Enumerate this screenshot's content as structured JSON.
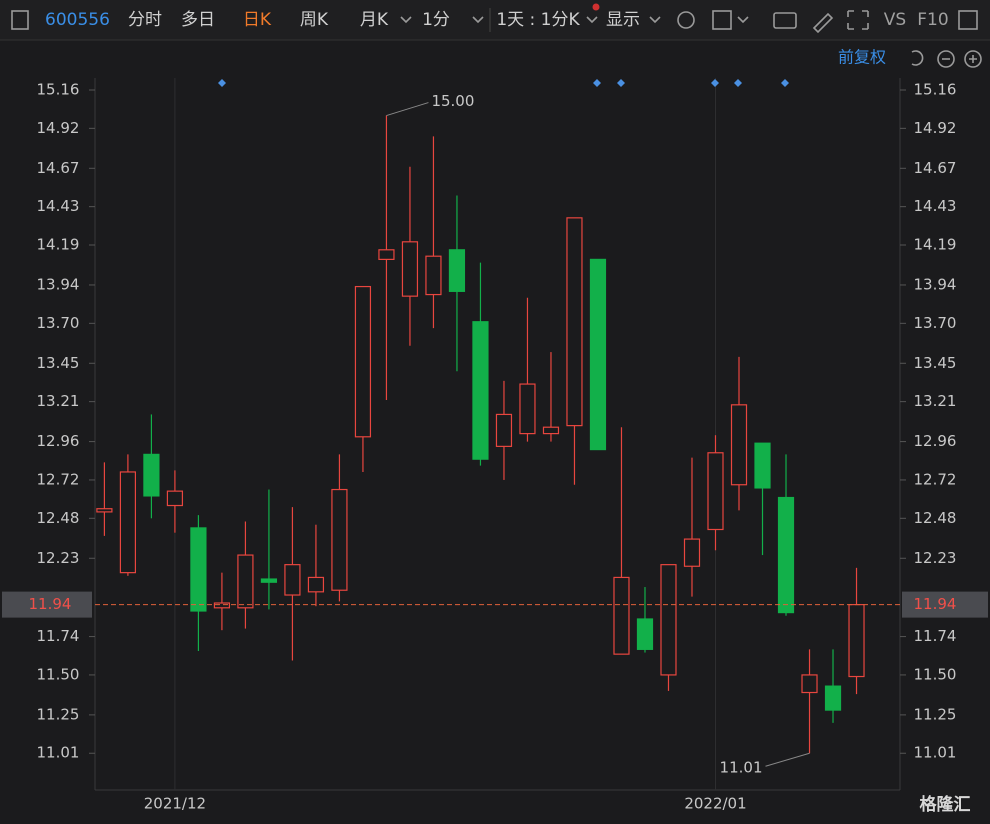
{
  "toolbar": {
    "code": "600556",
    "tabs": [
      "分时",
      "多日",
      "日K",
      "周K",
      "月K"
    ],
    "period": "1分",
    "range": "1天 : 1分K",
    "display": "显示",
    "vs": "VS",
    "f10": "F10",
    "adjust": "前复权"
  },
  "watermark": "格隆汇",
  "chart_data": {
    "type": "candlestick",
    "categories": [
      null,
      null,
      null,
      "2021/12",
      null,
      null,
      null,
      null,
      null,
      null,
      null,
      null,
      null,
      null,
      null,
      null,
      null,
      null,
      null,
      null,
      null,
      null,
      null,
      null,
      null,
      null,
      "2022/01",
      null,
      null,
      null,
      null,
      null,
      null
    ],
    "open": [
      12.52,
      12.14,
      12.88,
      12.56,
      12.42,
      11.92,
      11.92,
      12.1,
      12.0,
      12.02,
      12.03,
      12.99,
      14.1,
      13.87,
      13.88,
      14.16,
      13.71,
      12.93,
      13.01,
      13.01,
      13.06,
      14.1,
      11.63,
      11.85,
      11.5,
      12.18,
      12.41,
      12.69,
      12.95,
      12.61,
      11.39,
      11.43,
      11.49
    ],
    "high": [
      12.83,
      12.88,
      13.13,
      12.78,
      12.5,
      12.14,
      12.46,
      12.66,
      12.55,
      12.44,
      12.88,
      13.93,
      15.0,
      14.68,
      14.87,
      14.5,
      14.08,
      13.34,
      13.86,
      13.52,
      14.36,
      14.1,
      13.05,
      12.05,
      12.19,
      12.86,
      13.0,
      13.49,
      12.95,
      12.88,
      11.66,
      11.66,
      12.17
    ],
    "low": [
      12.37,
      12.12,
      12.48,
      12.39,
      11.65,
      11.78,
      11.79,
      11.91,
      11.59,
      11.93,
      11.96,
      12.77,
      13.22,
      13.56,
      13.67,
      13.4,
      12.81,
      12.72,
      12.96,
      12.96,
      12.69,
      12.91,
      11.63,
      11.64,
      11.4,
      11.99,
      12.28,
      12.53,
      12.25,
      11.87,
      11.01,
      11.2,
      11.38
    ],
    "close": [
      12.54,
      12.77,
      12.62,
      12.65,
      11.9,
      11.95,
      12.25,
      12.08,
      12.19,
      12.11,
      12.66,
      13.93,
      14.16,
      14.21,
      14.12,
      13.9,
      12.85,
      13.13,
      13.32,
      13.05,
      14.36,
      12.91,
      12.11,
      11.66,
      12.19,
      12.35,
      12.89,
      13.19,
      12.67,
      11.89,
      11.5,
      11.28,
      11.94
    ],
    "up_color": "#e8463f",
    "down_color": "#12b04a",
    "ylim": [
      10.78,
      15.235
    ],
    "yticks": [
      15.16,
      14.92,
      14.67,
      14.43,
      14.19,
      13.94,
      {
        "value": 13.7,
        "label": "13.70"
      },
      13.45,
      13.21,
      12.96,
      12.72,
      12.48,
      12.23,
      11.74,
      {
        "value": 11.5,
        "label": "11.50"
      },
      11.25,
      11.01
    ],
    "last_price": 11.94,
    "annotations": [
      {
        "label": "15.00",
        "value": 15.0
      },
      {
        "label": "11.01",
        "value": 11.01
      }
    ],
    "grid": false
  }
}
